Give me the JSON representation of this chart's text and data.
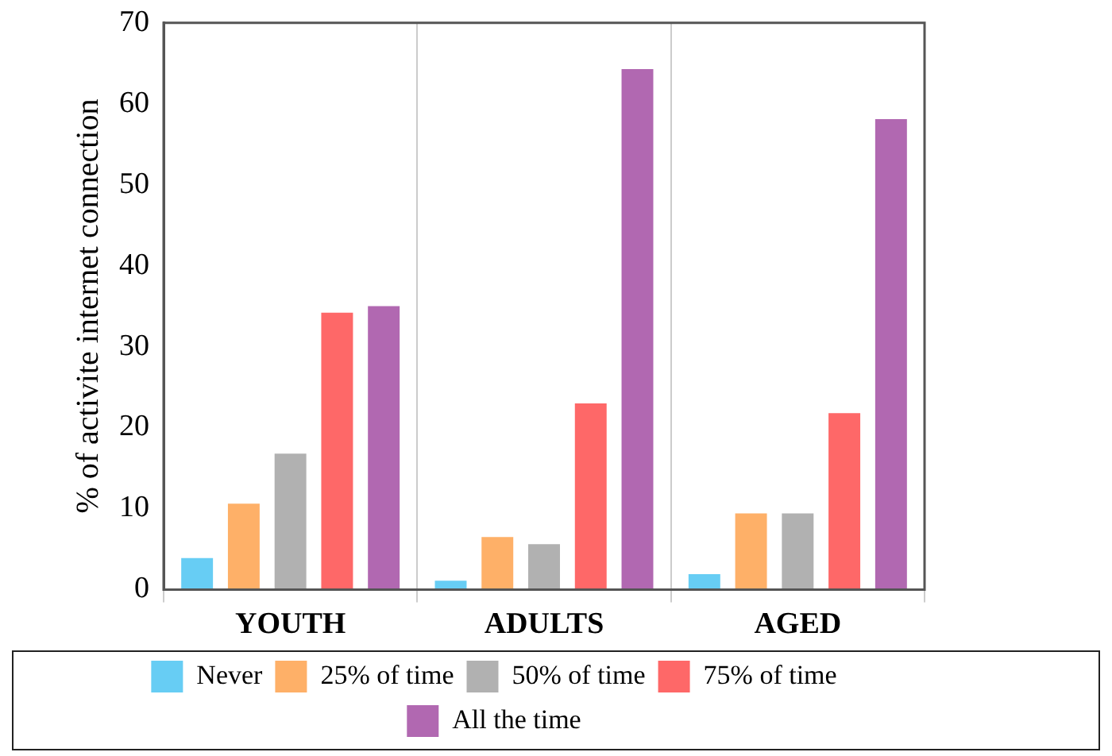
{
  "chart_data": {
    "type": "bar",
    "ylabel": "% of activite internet connection",
    "categories": [
      "YOUTH",
      "ADULTS",
      "AGED"
    ],
    "series": [
      {
        "name": "Never",
        "color": "#67cdf4",
        "values": [
          3.9,
          1.1,
          1.9
        ]
      },
      {
        "name": "25% of time",
        "color": "#feb068",
        "values": [
          10.6,
          6.5,
          9.4
        ]
      },
      {
        "name": "50% of time",
        "color": "#b1b1b1",
        "values": [
          16.8,
          5.6,
          9.4
        ]
      },
      {
        "name": "75% of time",
        "color": "#fe6868",
        "values": [
          34.2,
          23.0,
          21.8
        ]
      },
      {
        "name": "All the time",
        "color": "#b168b1",
        "values": [
          35.0,
          64.3,
          58.1
        ]
      }
    ],
    "ylim": [
      0,
      70
    ],
    "yticks": [
      0,
      10,
      20,
      30,
      40,
      50,
      60,
      70
    ],
    "grid": "x",
    "legend": "bottom"
  }
}
